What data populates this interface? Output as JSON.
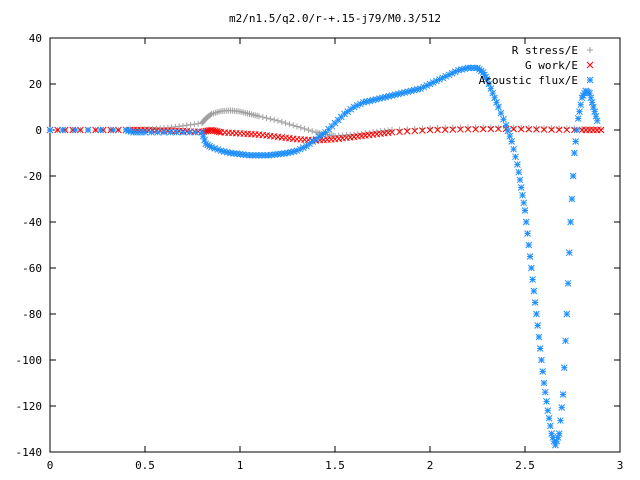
{
  "chart_data": {
    "type": "scatter",
    "title": "m2/n1.5/q2.0/r-+.15-j79/M0.3/512",
    "xlabel": "",
    "ylabel": "",
    "xlim": [
      0,
      3
    ],
    "ylim": [
      -140,
      40
    ],
    "xticks": [
      "0",
      "0.5",
      "1",
      "1.5",
      "2",
      "2.5",
      "3"
    ],
    "yticks": [
      "40",
      "20",
      "0",
      "-20",
      "-40",
      "-60",
      "-80",
      "-100",
      "-120",
      "-140"
    ],
    "legend_position": "top-right",
    "series": [
      {
        "name": "R stress/E",
        "marker": "plus",
        "color": "#a0a0a0",
        "points": [
          [
            0.0,
            0
          ],
          [
            0.2,
            0
          ],
          [
            0.4,
            0
          ],
          [
            0.5,
            0.3
          ],
          [
            0.6,
            0.8
          ],
          [
            0.7,
            1.8
          ],
          [
            0.8,
            3
          ],
          [
            0.82,
            5
          ],
          [
            0.85,
            7
          ],
          [
            0.9,
            8.2
          ],
          [
            0.95,
            8.5
          ],
          [
            1.0,
            8
          ],
          [
            1.05,
            7
          ],
          [
            1.1,
            6
          ],
          [
            1.2,
            4
          ],
          [
            1.3,
            1.5
          ],
          [
            1.4,
            -1
          ],
          [
            1.45,
            -2
          ],
          [
            1.5,
            -2.5
          ],
          [
            1.6,
            -2
          ],
          [
            1.7,
            -1
          ],
          [
            1.8,
            0
          ],
          [
            2.0,
            0.8
          ],
          [
            2.2,
            1.2
          ],
          [
            2.4,
            1.0
          ],
          [
            2.6,
            0.8
          ],
          [
            2.8,
            0.5
          ],
          [
            2.9,
            0.3
          ]
        ]
      },
      {
        "name": "G work/E",
        "marker": "x",
        "color": "#ff0000",
        "points": [
          [
            0.0,
            0
          ],
          [
            0.2,
            0
          ],
          [
            0.4,
            0
          ],
          [
            0.5,
            0
          ],
          [
            0.6,
            -0.3
          ],
          [
            0.7,
            -0.5
          ],
          [
            0.8,
            -0.8
          ],
          [
            0.85,
            0
          ],
          [
            0.9,
            -1
          ],
          [
            1.0,
            -1.5
          ],
          [
            1.1,
            -2
          ],
          [
            1.2,
            -3
          ],
          [
            1.3,
            -4
          ],
          [
            1.4,
            -4.5
          ],
          [
            1.5,
            -4
          ],
          [
            1.6,
            -3
          ],
          [
            1.7,
            -2
          ],
          [
            1.8,
            -1
          ],
          [
            2.0,
            0
          ],
          [
            2.2,
            0.3
          ],
          [
            2.4,
            0.5
          ],
          [
            2.6,
            0.2
          ],
          [
            2.8,
            0
          ],
          [
            2.9,
            0
          ]
        ]
      },
      {
        "name": "Acoustic flux/E",
        "marker": "star",
        "color": "#1f8fff",
        "points": [
          [
            0.0,
            0
          ],
          [
            0.2,
            0
          ],
          [
            0.4,
            0
          ],
          [
            0.44,
            -1
          ],
          [
            0.5,
            -1
          ],
          [
            0.6,
            -1
          ],
          [
            0.7,
            -1
          ],
          [
            0.8,
            -1
          ],
          [
            0.82,
            -6
          ],
          [
            0.85,
            -7.5
          ],
          [
            0.9,
            -9
          ],
          [
            0.95,
            -10
          ],
          [
            1.0,
            -10.5
          ],
          [
            1.05,
            -11
          ],
          [
            1.1,
            -11
          ],
          [
            1.15,
            -11
          ],
          [
            1.2,
            -10.5
          ],
          [
            1.25,
            -10
          ],
          [
            1.3,
            -9
          ],
          [
            1.35,
            -7
          ],
          [
            1.4,
            -4
          ],
          [
            1.45,
            -1
          ],
          [
            1.5,
            3
          ],
          [
            1.55,
            7
          ],
          [
            1.6,
            10
          ],
          [
            1.65,
            12
          ],
          [
            1.7,
            13
          ],
          [
            1.75,
            14
          ],
          [
            1.8,
            15
          ],
          [
            1.85,
            16
          ],
          [
            1.9,
            17
          ],
          [
            1.95,
            18
          ],
          [
            2.0,
            20
          ],
          [
            2.05,
            22
          ],
          [
            2.1,
            24
          ],
          [
            2.15,
            26
          ],
          [
            2.2,
            27
          ],
          [
            2.25,
            27
          ],
          [
            2.28,
            25
          ],
          [
            2.3,
            22
          ],
          [
            2.33,
            16
          ],
          [
            2.36,
            10
          ],
          [
            2.4,
            2
          ],
          [
            2.43,
            -5
          ],
          [
            2.46,
            -15
          ],
          [
            2.48,
            -25
          ],
          [
            2.5,
            -35
          ],
          [
            2.52,
            -50
          ],
          [
            2.54,
            -65
          ],
          [
            2.56,
            -80
          ],
          [
            2.58,
            -95
          ],
          [
            2.6,
            -110
          ],
          [
            2.62,
            -122
          ],
          [
            2.64,
            -132
          ],
          [
            2.66,
            -137
          ],
          [
            2.68,
            -132
          ],
          [
            2.7,
            -115
          ],
          [
            2.72,
            -80
          ],
          [
            2.74,
            -40
          ],
          [
            2.76,
            -10
          ],
          [
            2.78,
            5
          ],
          [
            2.8,
            14
          ],
          [
            2.82,
            17
          ],
          [
            2.84,
            16
          ],
          [
            2.86,
            10
          ],
          [
            2.88,
            4
          ]
        ]
      }
    ]
  }
}
